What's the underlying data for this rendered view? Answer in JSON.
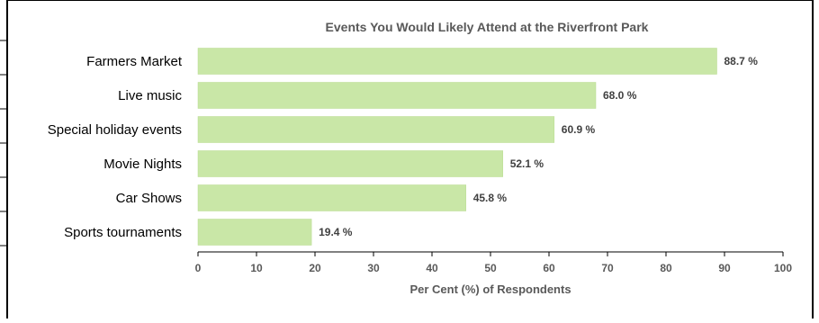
{
  "chart_data": {
    "type": "bar",
    "orientation": "horizontal",
    "title": "Events You Would Likely Attend at the Riverfront Park",
    "xlabel": "Per Cent (%) of Respondents",
    "ylabel": "",
    "categories": [
      "Farmers Market",
      "Live music",
      "Special holiday events",
      "Movie Nights",
      "Car Shows",
      "Sports tournaments"
    ],
    "values": [
      88.7,
      68.0,
      60.9,
      52.1,
      45.8,
      19.4
    ],
    "value_labels": [
      "88.7 %",
      "68.0 %",
      "60.9 %",
      "52.1 %",
      "45.8 %",
      "19.4 %"
    ],
    "xlim": [
      0,
      100
    ],
    "xticks": [
      0,
      10,
      20,
      30,
      40,
      50,
      60,
      70,
      80,
      90,
      100
    ],
    "grid": false,
    "legend": "none",
    "bar_color": "#C9E7A7",
    "bar_edge_color": "#B7DB8F"
  }
}
